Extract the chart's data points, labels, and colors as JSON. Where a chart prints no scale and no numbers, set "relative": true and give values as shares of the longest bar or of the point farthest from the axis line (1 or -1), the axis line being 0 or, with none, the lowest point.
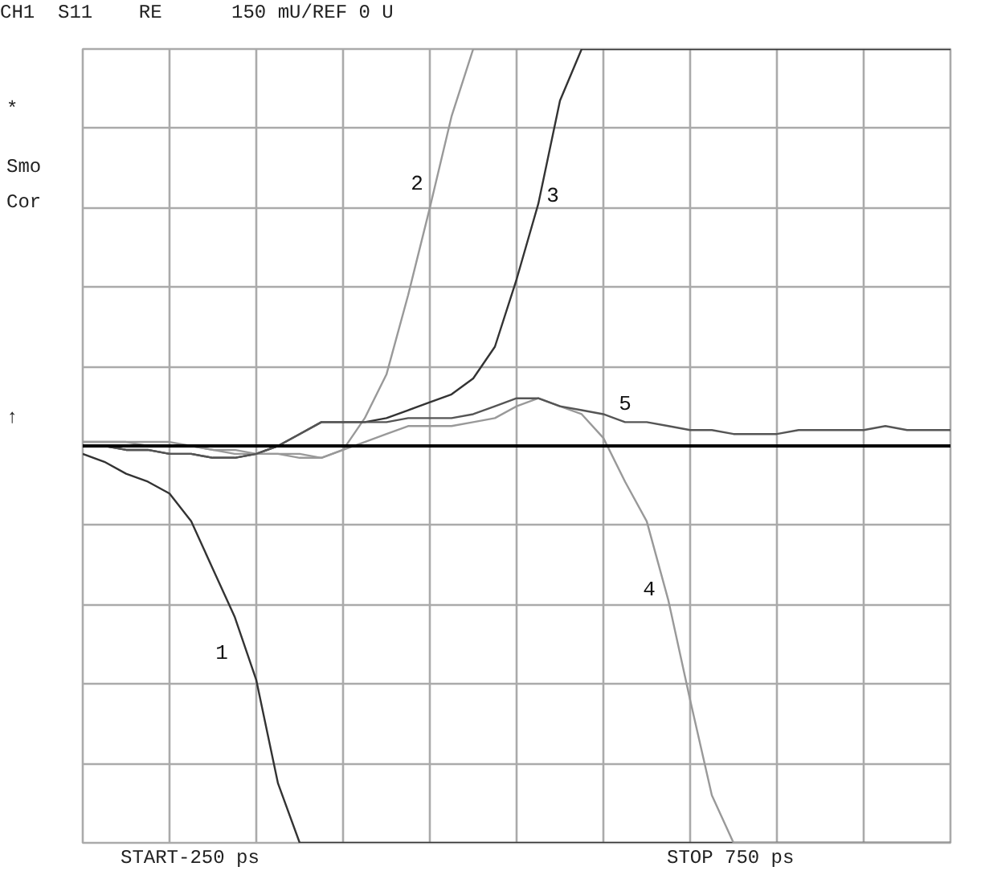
{
  "chart_data": {
    "type": "line",
    "title": "CH1  S11    RE      150 mU/REF 0 U",
    "relative": true,
    "grid": true,
    "categories": [
      null,
      null,
      null,
      null,
      null,
      null,
      null,
      null,
      null,
      null,
      null,
      null,
      null,
      null,
      null,
      null,
      null,
      null,
      null,
      null,
      null,
      null,
      null,
      null,
      null,
      null,
      null,
      null,
      null,
      null,
      null,
      null,
      null,
      null,
      null,
      null,
      null,
      null,
      null,
      null,
      null
    ],
    "series": [
      {
        "name": "1",
        "color": "#333333",
        "values": [
          -0.02,
          -0.04,
          -0.07,
          -0.09,
          -0.12,
          -0.19,
          -0.31,
          -0.43,
          -0.59,
          -0.85,
          -1,
          -1,
          -1,
          -1,
          -1,
          -1,
          -1,
          -1,
          -1,
          -1,
          -1,
          -1,
          -1,
          -1,
          -1,
          -1,
          -1,
          -1,
          -1,
          -1,
          -1,
          -1,
          -1,
          -1,
          -1,
          -1,
          -1,
          -1,
          -1,
          -1,
          -1
        ]
      },
      {
        "name": "2",
        "color": "#999999",
        "values": [
          0.01,
          0.01,
          0.01,
          0.01,
          0.01,
          0,
          -0.01,
          -0.02,
          -0.02,
          -0.02,
          -0.03,
          -0.03,
          -0.01,
          0.07,
          0.18,
          0.38,
          0.6,
          0.83,
          1,
          1,
          1,
          1,
          1,
          1,
          1,
          1,
          1,
          1,
          1,
          1,
          1,
          1,
          1,
          1,
          1,
          1,
          1,
          1,
          1,
          1,
          1
        ]
      },
      {
        "name": "3",
        "color": "#333333",
        "values": [
          0,
          0,
          -0.01,
          -0.01,
          -0.02,
          -0.02,
          -0.03,
          -0.03,
          -0.02,
          0,
          0.03,
          0.06,
          0.06,
          0.06,
          0.07,
          0.09,
          0.11,
          0.13,
          0.17,
          0.25,
          0.42,
          0.61,
          0.87,
          1,
          1,
          1,
          1,
          1,
          1,
          1,
          1,
          1,
          1,
          1,
          1,
          1,
          1,
          1,
          1,
          1,
          1
        ]
      },
      {
        "name": "4",
        "color": "#999999",
        "values": [
          0.01,
          0.01,
          0.01,
          0,
          0,
          0,
          -0.01,
          -0.01,
          -0.02,
          -0.02,
          -0.02,
          -0.03,
          -0.01,
          0.01,
          0.03,
          0.05,
          0.05,
          0.05,
          0.06,
          0.07,
          0.1,
          0.12,
          0.1,
          0.08,
          0.02,
          -0.09,
          -0.19,
          -0.39,
          -0.64,
          -0.88,
          -1,
          -1,
          -1,
          -1,
          -1,
          -1,
          -1,
          -1,
          -1,
          -1,
          -1
        ]
      },
      {
        "name": "5",
        "color": "#555555",
        "values": [
          0,
          0,
          -0.01,
          -0.01,
          -0.02,
          -0.02,
          -0.03,
          -0.03,
          -0.02,
          0,
          0.03,
          0.06,
          0.06,
          0.06,
          0.06,
          0.07,
          0.07,
          0.07,
          0.08,
          0.1,
          0.12,
          0.12,
          0.1,
          0.09,
          0.08,
          0.06,
          0.06,
          0.05,
          0.04,
          0.04,
          0.03,
          0.03,
          0.03,
          0.04,
          0.04,
          0.04,
          0.04,
          0.05,
          0.04,
          0.04,
          0.04
        ]
      }
    ],
    "annotations": [
      "*",
      "Smo",
      "Cor",
      "↑",
      "START-250 ps",
      "STOP 750 ps"
    ]
  }
}
